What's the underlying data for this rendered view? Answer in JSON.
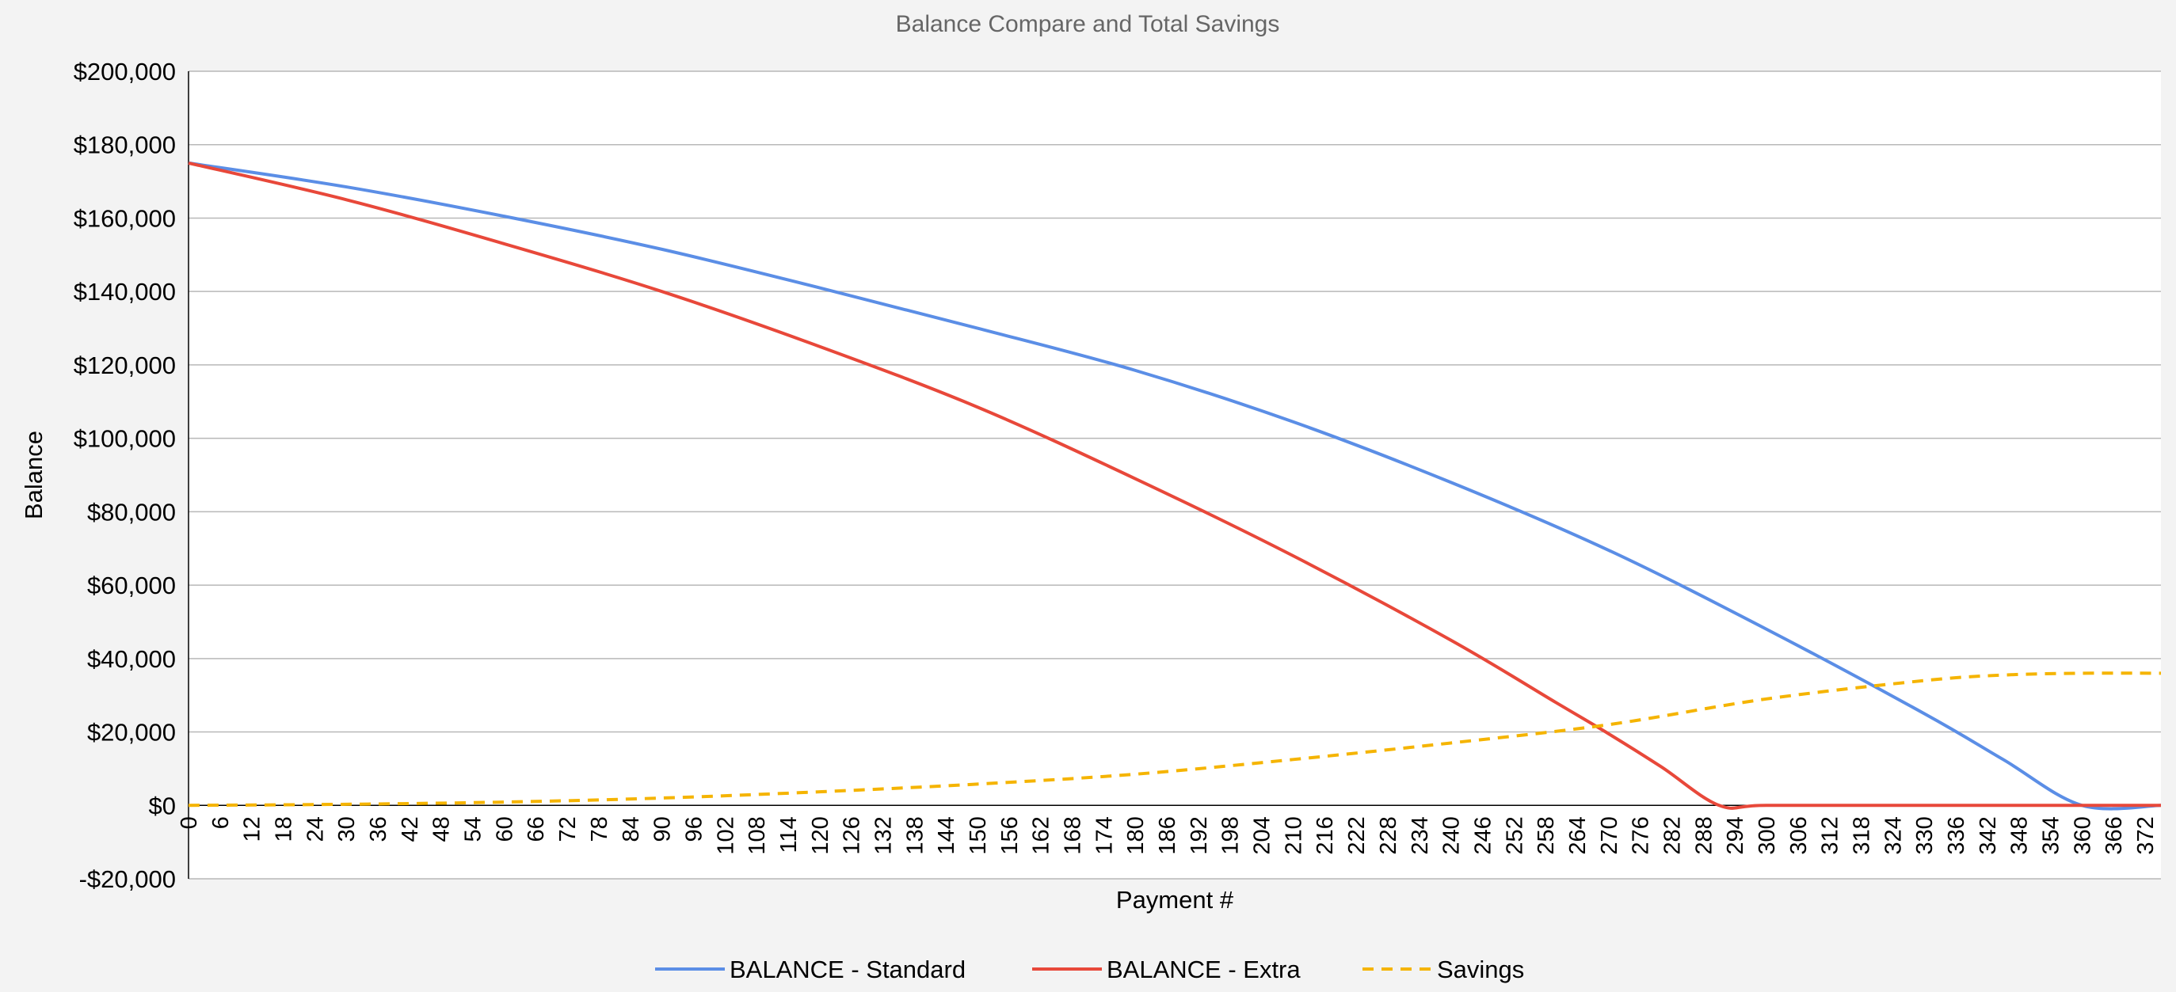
{
  "chart_data": {
    "type": "line",
    "title": "Balance Compare and Total Savings",
    "xlabel": "Payment #",
    "ylabel": "Balance",
    "xlim": [
      0,
      375
    ],
    "ylim": [
      -20000,
      200000
    ],
    "y_ticks": [
      -20000,
      0,
      20000,
      40000,
      60000,
      80000,
      100000,
      120000,
      140000,
      160000,
      180000,
      200000
    ],
    "y_tick_labels": [
      "-$20,000",
      "$0",
      "$20,000",
      "$40,000",
      "$60,000",
      "$80,000",
      "$100,000",
      "$120,000",
      "$140,000",
      "$160,000",
      "$180,000",
      "$200,000"
    ],
    "x_ticks": [
      0,
      6,
      12,
      18,
      24,
      30,
      36,
      42,
      48,
      54,
      60,
      66,
      72,
      78,
      84,
      90,
      96,
      102,
      108,
      114,
      120,
      126,
      132,
      138,
      144,
      150,
      156,
      162,
      168,
      174,
      180,
      186,
      192,
      198,
      204,
      210,
      216,
      222,
      228,
      234,
      240,
      246,
      252,
      258,
      264,
      270,
      276,
      282,
      288,
      294,
      300,
      306,
      312,
      318,
      324,
      330,
      336,
      342,
      348,
      354,
      360,
      366,
      372
    ],
    "grid": true,
    "legend_position": "bottom",
    "series": [
      {
        "name": "BALANCE - Standard",
        "color": "#5b8ee6",
        "style": "solid",
        "x": [
          0,
          30,
          60,
          90,
          120,
          150,
          180,
          210,
          240,
          270,
          300,
          330,
          345,
          360,
          375
        ],
        "values": [
          175000,
          168500,
          160500,
          151500,
          141000,
          130000,
          118500,
          104500,
          88000,
          69500,
          48000,
          25000,
          12500,
          0,
          0
        ]
      },
      {
        "name": "BALANCE - Extra",
        "color": "#e8483a",
        "style": "solid",
        "x": [
          0,
          30,
          60,
          90,
          120,
          150,
          180,
          210,
          240,
          260,
          270,
          280,
          291,
          300,
          330,
          360,
          375
        ],
        "values": [
          175000,
          165000,
          153000,
          140000,
          125000,
          108500,
          89000,
          68000,
          45000,
          28000,
          19500,
          10500,
          0,
          0,
          0,
          0,
          0
        ]
      },
      {
        "name": "Savings",
        "color": "#f5b400",
        "style": "dashed",
        "x": [
          0,
          30,
          60,
          90,
          120,
          150,
          180,
          210,
          240,
          270,
          300,
          330,
          345,
          360,
          375
        ],
        "values": [
          0,
          300,
          900,
          2000,
          3700,
          5800,
          8500,
          12500,
          17000,
          22000,
          29000,
          34000,
          35500,
          36000,
          36000
        ]
      }
    ]
  }
}
